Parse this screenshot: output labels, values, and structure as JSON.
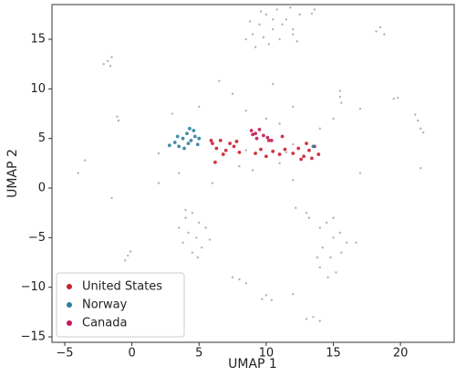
{
  "chart_data": {
    "type": "scatter",
    "xlabel": "UMAP 1",
    "ylabel": "UMAP 2",
    "xlim": [
      -5.95,
      24.0
    ],
    "ylim": [
      -15.55,
      18.5
    ],
    "xticks": [
      {
        "value": -5,
        "label": "−5"
      },
      0,
      5,
      10,
      15,
      20
    ],
    "yticks": [
      {
        "value": -15,
        "label": "−15"
      },
      {
        "value": -10,
        "label": "−10"
      },
      {
        "value": -5,
        "label": "−5"
      },
      0,
      5,
      10,
      15
    ],
    "legend": "lower left",
    "grid": false,
    "series": [
      {
        "color": "#9a9a9a",
        "x": [
          9,
          9.5,
          10,
          10.5,
          11,
          11.5,
          12,
          12.3,
          10.2,
          9.2,
          8.8,
          10.8,
          11.8,
          12.5,
          9.8,
          11.2,
          10.5,
          8.5,
          12,
          9.6,
          -1.8,
          -1.5,
          -2.1,
          -1.6,
          13.6,
          13.4,
          18.5,
          18.2,
          18.8,
          21.3,
          21.5,
          21.1,
          21.7,
          -1.1,
          -1,
          19.5,
          19.8,
          15.5,
          15.6,
          15.5,
          4,
          4.5,
          5,
          5.5,
          4.2,
          3.8,
          4.8,
          5.2,
          4.5,
          3.5,
          5.8,
          4,
          4.9,
          -0.3,
          -0.5,
          -0.1,
          14,
          14.5,
          15,
          15.5,
          14.2,
          14.8,
          15.6,
          14,
          14.6,
          15.2,
          16,
          15,
          13.8,
          13,
          13.2,
          8,
          8.5,
          7.5,
          10,
          10.4,
          9.7,
          12,
          13.5,
          14,
          13,
          12.2,
          16.7,
          2,
          3,
          5,
          7.5,
          8.5,
          10,
          11,
          12,
          14,
          3.5,
          6,
          9,
          12,
          2,
          -3.5,
          -1.5,
          17,
          21.5,
          17,
          6.5,
          10.5,
          -4,
          15,
          8,
          11,
          8.5,
          11.5,
          12
        ],
        "values": [
          15.5,
          16.5,
          17.5,
          16,
          15,
          17,
          16,
          14.8,
          14.5,
          14.2,
          16.8,
          18,
          18.2,
          17.5,
          15.2,
          16.5,
          17,
          15,
          15.5,
          17.8,
          12.8,
          13.2,
          12.5,
          12.3,
          18,
          17.6,
          16.2,
          15.8,
          15.5,
          6.8,
          6,
          7.4,
          5.6,
          7.2,
          6.8,
          9,
          9.1,
          9.2,
          8.6,
          9.8,
          -3,
          -2.5,
          -3.5,
          -4,
          -4.5,
          -5.5,
          -5,
          -6,
          -6.5,
          -4,
          -5.2,
          -2.2,
          -7,
          -6.8,
          -7.3,
          -6.4,
          -4,
          -3.5,
          -5,
          -4.5,
          -6,
          -7,
          -6.5,
          -8,
          -9,
          -8.5,
          -5.5,
          -3,
          -7,
          -2.5,
          -3,
          -9.2,
          -9.6,
          -9,
          -10.8,
          -11.3,
          -11.2,
          -10.7,
          -13,
          -13.4,
          -13.2,
          -2,
          -5.5,
          3.5,
          7.5,
          8.2,
          9.5,
          7.8,
          7,
          6.5,
          8.2,
          6,
          1.5,
          0.5,
          1.8,
          0.8,
          0.5,
          2.8,
          -1,
          1.5,
          2,
          8,
          10.8,
          10.5,
          1.5,
          7,
          2.2,
          2.5,
          3.8,
          3.6,
          4.4
        ]
      },
      {
        "name": "United States",
        "color": "#c9202f",
        "x": [
          6,
          6.3,
          6.6,
          7,
          7.3,
          7.6,
          8,
          6.8,
          5.9,
          7.8,
          9.2,
          9.6,
          10,
          10.5,
          11,
          11.4,
          12,
          12.4,
          12.8,
          13.2,
          13.6,
          13,
          12.6,
          13.9,
          13.4,
          6.2,
          10.2,
          11.2
        ],
        "values": [
          4.5,
          4,
          4.8,
          3.8,
          4.5,
          4.2,
          3.6,
          3.4,
          4.8,
          4.7,
          3.5,
          3.9,
          3.2,
          3.7,
          3.4,
          3.9,
          3.5,
          4,
          3.2,
          3.8,
          4.2,
          4.5,
          2.9,
          3.4,
          3,
          2.6,
          4.8,
          5.2
        ]
      },
      {
        "name": "Norway",
        "color": "#2f7ea0",
        "x": [
          2.8,
          3.2,
          3.5,
          3.8,
          4.1,
          4.4,
          4.7,
          4.9,
          4.3,
          3.9,
          4.6,
          3.4,
          5,
          4.2,
          13.5
        ],
        "values": [
          4.3,
          4.6,
          4.2,
          5,
          5.5,
          4.8,
          5.2,
          4.4,
          6,
          4,
          5.8,
          5.2,
          5,
          4.5,
          4.2
        ]
      },
      {
        "name": "Canada",
        "color": "#c2185b",
        "x": [
          8.9,
          9.2,
          9.5,
          9.8,
          10.1,
          10.4,
          9.3,
          9
        ],
        "values": [
          5.8,
          5.5,
          5.9,
          5.3,
          5.1,
          4.8,
          5,
          5.4
        ]
      }
    ]
  }
}
